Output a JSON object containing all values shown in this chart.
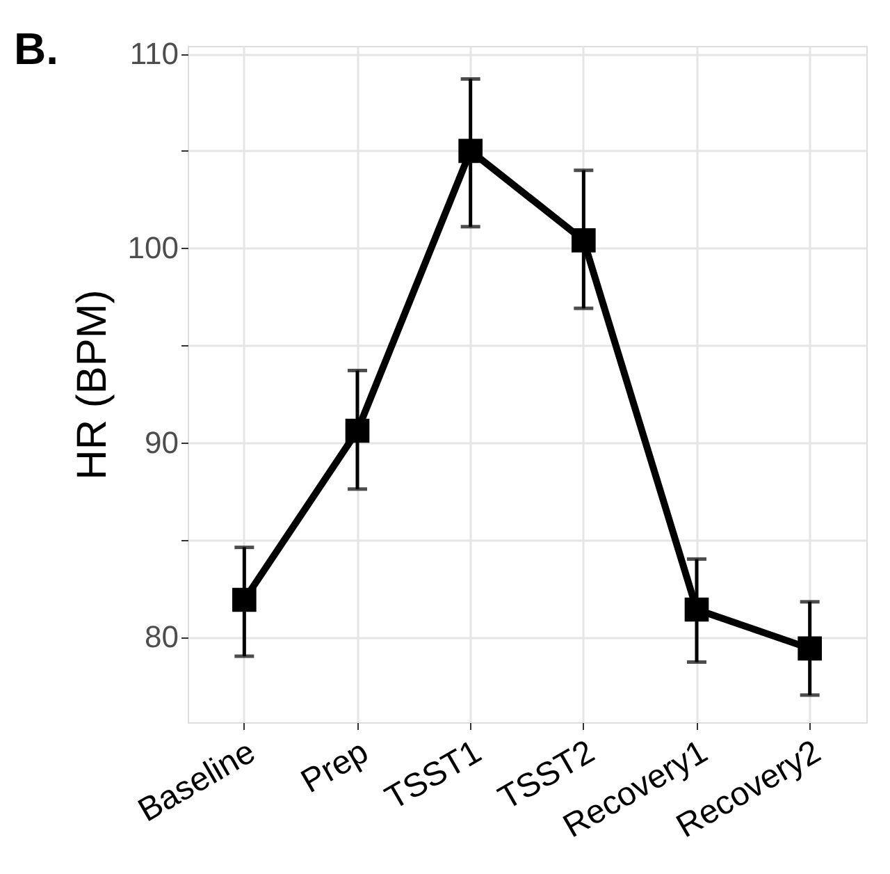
{
  "chart_data": {
    "type": "line",
    "ylabel": "HR (BPM)",
    "annotations": [
      "B."
    ],
    "categories": [
      "Baseline",
      "Prep",
      "TSST1",
      "TSST2",
      "Recovery1",
      "Recovery2"
    ],
    "series": [
      {
        "color": "#000000",
        "values": [
          81.9,
          90.6,
          105.0,
          100.4,
          81.4,
          79.4
        ],
        "errors": [
          [
            79.0,
            84.6
          ],
          [
            87.6,
            93.7
          ],
          [
            101.1,
            108.7
          ],
          [
            96.9,
            104.0
          ],
          [
            78.7,
            84.0
          ],
          [
            77.0,
            81.8
          ]
        ]
      }
    ],
    "ylim": [
      75.6,
      110.4
    ],
    "yticks": [
      80,
      {
        "value": 85,
        "label": null
      },
      90,
      {
        "value": 95,
        "label": null
      },
      100,
      {
        "value": 105,
        "label": null
      },
      110
    ],
    "grid": true,
    "marker": "square",
    "line_style": "solid"
  }
}
